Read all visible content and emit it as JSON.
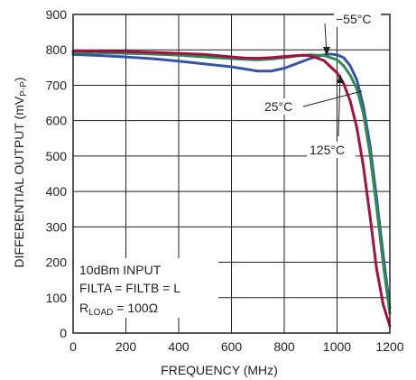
{
  "chart_data": {
    "type": "line",
    "xlabel": "FREQUENCY (MHz)",
    "ylabel": {
      "main": "DIFFERENTIAL OUTPUT (mV",
      "sub": "P-P",
      "close": ")"
    },
    "xlim": [
      0,
      1200
    ],
    "ylim": [
      0,
      900
    ],
    "xticks": [
      "0",
      "200",
      "400",
      "600",
      "800",
      "1000",
      "1200"
    ],
    "yticks": [
      "0",
      "100",
      "200",
      "300",
      "400",
      "500",
      "600",
      "700",
      "800",
      "900"
    ],
    "grid": true,
    "series": [
      {
        "name": "−55°C",
        "color": "#3953a4",
        "x": [
          0,
          100,
          200,
          300,
          400,
          500,
          600,
          650,
          700,
          750,
          800,
          850,
          900,
          950,
          975,
          1000,
          1025,
          1050,
          1075,
          1100,
          1125,
          1150,
          1175,
          1200
        ],
        "y": [
          787,
          784,
          780,
          775,
          768,
          760,
          752,
          746,
          740,
          740,
          748,
          762,
          776,
          786,
          788,
          786,
          778,
          755,
          715,
          640,
          530,
          380,
          220,
          70
        ]
      },
      {
        "name": "25°C",
        "color": "#2e8b57",
        "x": [
          0,
          100,
          200,
          300,
          400,
          500,
          600,
          650,
          700,
          750,
          800,
          850,
          900,
          950,
          1000,
          1025,
          1050,
          1075,
          1100,
          1125,
          1150,
          1175,
          1200
        ],
        "y": [
          793,
          792,
          790,
          788,
          785,
          780,
          775,
          773,
          772,
          774,
          778,
          783,
          786,
          784,
          772,
          755,
          728,
          690,
          620,
          505,
          355,
          195,
          55
        ]
      },
      {
        "name": "125°C",
        "color": "#a3123e",
        "x": [
          0,
          100,
          200,
          300,
          400,
          500,
          600,
          650,
          700,
          750,
          800,
          850,
          875,
          900,
          950,
          1000,
          1025,
          1050,
          1075,
          1100,
          1125,
          1150,
          1175,
          1200
        ],
        "y": [
          797,
          796,
          795,
          793,
          790,
          787,
          780,
          777,
          776,
          778,
          781,
          784,
          785,
          783,
          770,
          735,
          705,
          655,
          580,
          470,
          330,
          180,
          80,
          20
        ]
      }
    ],
    "annotations": {
      "label_m55": "−55°C",
      "label_25": "25°C",
      "label_125": "125°C",
      "cond_input": "10dBm INPUT",
      "cond_filt": "FILTA = FILTB = L",
      "cond_rload_main": "R",
      "cond_rload_sub": "LOAD",
      "cond_rload_val": " = 100Ω"
    }
  }
}
